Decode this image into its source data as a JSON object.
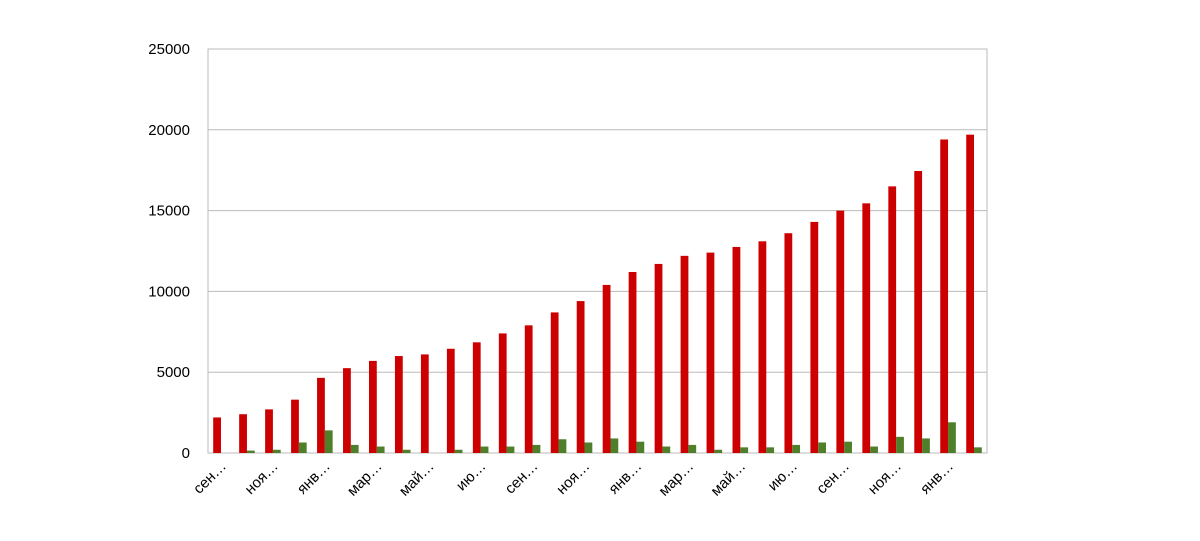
{
  "chart_data": {
    "type": "bar",
    "categories": [
      "сен…",
      null,
      "ноя…",
      null,
      "янв…",
      null,
      "мар…",
      null,
      "май…",
      null,
      "ию…",
      null,
      "сен…",
      null,
      "ноя…",
      null,
      "янв…",
      null,
      "мар…",
      null,
      "май…",
      null,
      "ию…",
      null,
      "сен…",
      null,
      "ноя…",
      null,
      "янв…",
      null
    ],
    "series": [
      {
        "color": "#cc0000",
        "values": [
          2200,
          2400,
          2700,
          3300,
          4650,
          5250,
          5700,
          6000,
          6100,
          6450,
          6850,
          7400,
          7900,
          8700,
          9400,
          10400,
          11200,
          11700,
          12200,
          12400,
          12750,
          13100,
          13600,
          14300,
          15000,
          15450,
          16500,
          17450,
          19400,
          19700
        ]
      },
      {
        "color": "#4f7f2a",
        "values": [
          0,
          150,
          200,
          650,
          1400,
          500,
          400,
          200,
          0,
          200,
          400,
          400,
          500,
          850,
          650,
          900,
          700,
          400,
          500,
          200,
          350,
          350,
          500,
          650,
          700,
          400,
          1000,
          900,
          1900,
          350
        ]
      }
    ],
    "ylim": [
      0,
      25000
    ],
    "yticks": [
      0,
      5000,
      10000,
      15000,
      20000,
      25000
    ],
    "grid": true
  }
}
